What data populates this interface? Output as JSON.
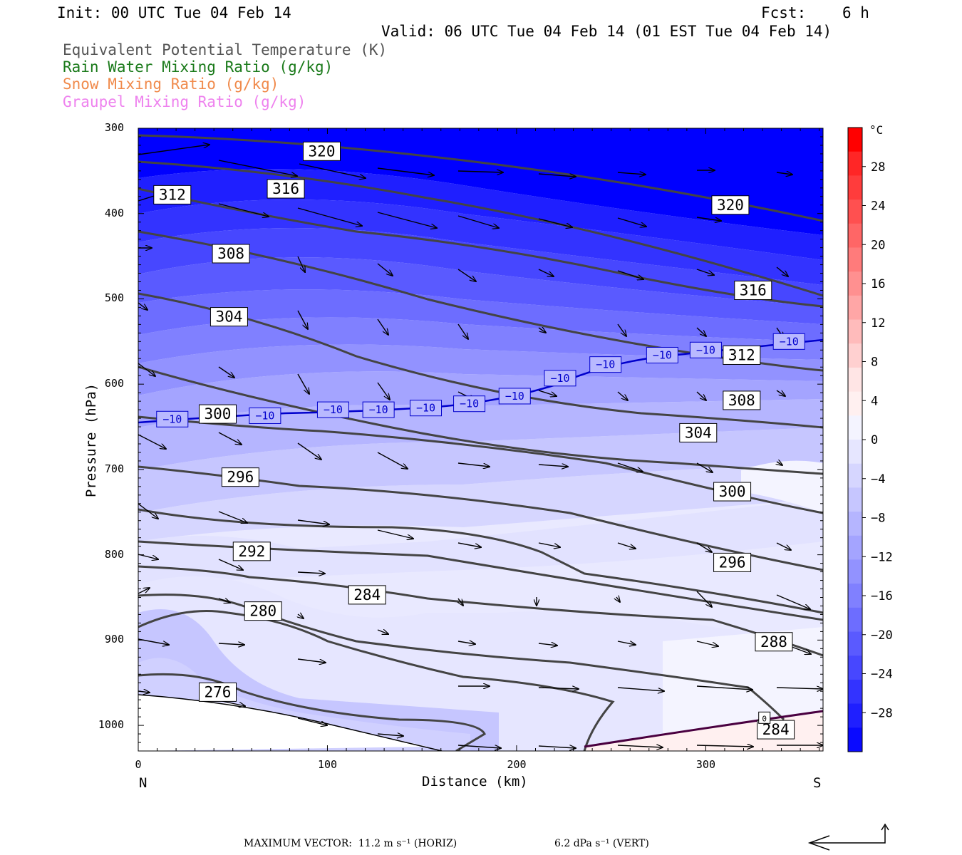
{
  "header": {
    "init": "Init: 00 UTC Tue 04 Feb 14",
    "fcst_label": "Fcst:",
    "fcst_value": "6 h",
    "valid": "Valid: 06 UTC Tue 04 Feb 14 (01 EST Tue 04 Feb 14)",
    "var1": "Equivalent Potential Temperature (K)",
    "var2": "Rain Water Mixing Ratio (g/kg)",
    "var3": "Snow Mixing Ratio (g/kg)",
    "var4": "Graupel Mixing Ratio (g/kg)",
    "var1_color": "#555555",
    "var2_color": "#1a7a1a",
    "var3_color": "#f08a4b",
    "var4_color": "#ee82ee"
  },
  "chart_data": {
    "type": "contour cross-section",
    "xlabel": "Distance (km)",
    "ylabel": "Pressure (hPa)",
    "x_ticks": [
      "0",
      "100",
      "200",
      "300"
    ],
    "x_tick_values": [
      0,
      100,
      200,
      300
    ],
    "x_end_labels": {
      "left": "N",
      "right": "S"
    },
    "xlim": [
      0,
      362
    ],
    "y_ticks": [
      "300",
      "400",
      "500",
      "600",
      "700",
      "800",
      "900",
      "1000"
    ],
    "y_tick_values": [
      300,
      400,
      500,
      600,
      700,
      800,
      900,
      1000
    ],
    "ylim": [
      300,
      1030
    ],
    "colorbar": {
      "unit": "°C",
      "labels": [
        "28",
        "24",
        "20",
        "16",
        "12",
        "8",
        "4",
        "0",
        "−4",
        "−8",
        "−12",
        "−16",
        "−20",
        "−24",
        "−28"
      ],
      "colors": [
        "#ff0000",
        "#ff2626",
        "#ff3c3c",
        "#ff5050",
        "#ff6666",
        "#ff7b7b",
        "#ff9090",
        "#ffa6a6",
        "#ffbbbb",
        "#ffd0d0",
        "#ffe5e5",
        "#fff0f0",
        "#f4f4ff",
        "#e6e6ff",
        "#d6d6ff",
        "#c6c6ff",
        "#b5b5ff",
        "#a4a4ff",
        "#9292ff",
        "#8080ff",
        "#6d6dff",
        "#5a5aff",
        "#4747ff",
        "#3333ff",
        "#1f1fff",
        "#0a0aff"
      ]
    },
    "theta_e_labels": [
      {
        "text": "320",
        "x": 97,
        "p": 327
      },
      {
        "text": "316",
        "x": 78,
        "p": 371
      },
      {
        "text": "312",
        "x": 18,
        "p": 378
      },
      {
        "text": "320",
        "x": 313,
        "p": 390
      },
      {
        "text": "308",
        "x": 49,
        "p": 447
      },
      {
        "text": "316",
        "x": 325,
        "p": 490
      },
      {
        "text": "304",
        "x": 48,
        "p": 521
      },
      {
        "text": "312",
        "x": 319,
        "p": 566
      },
      {
        "text": "308",
        "x": 319,
        "p": 619
      },
      {
        "text": "300",
        "x": 42,
        "p": 635
      },
      {
        "text": "304",
        "x": 296,
        "p": 657
      },
      {
        "text": "296",
        "x": 54,
        "p": 709
      },
      {
        "text": "300",
        "x": 314,
        "p": 726
      },
      {
        "text": "292",
        "x": 60,
        "p": 796
      },
      {
        "text": "296",
        "x": 314,
        "p": 809
      },
      {
        "text": "284",
        "x": 121,
        "p": 847
      },
      {
        "text": "280",
        "x": 66,
        "p": 866
      },
      {
        "text": "288",
        "x": 336,
        "p": 902
      },
      {
        "text": "276",
        "x": 42,
        "p": 961
      },
      {
        "text": "284",
        "x": 337,
        "p": 1005
      }
    ],
    "isotherm_labels": [
      {
        "text": "−10",
        "x": 18,
        "p": 641
      },
      {
        "text": "−10",
        "x": 67,
        "p": 637
      },
      {
        "text": "−10",
        "x": 103,
        "p": 630
      },
      {
        "text": "−10",
        "x": 127,
        "p": 630
      },
      {
        "text": "−10",
        "x": 152,
        "p": 628
      },
      {
        "text": "−10",
        "x": 175,
        "p": 623
      },
      {
        "text": "−10",
        "x": 199,
        "p": 614
      },
      {
        "text": "−10",
        "x": 223,
        "p": 593
      },
      {
        "text": "−10",
        "x": 247,
        "p": 577
      },
      {
        "text": "−10",
        "x": 277,
        "p": 566
      },
      {
        "text": "−10",
        "x": 300,
        "p": 560
      },
      {
        "text": "−10",
        "x": 344,
        "p": 550
      }
    ],
    "small_label": {
      "text": "0",
      "x": 331,
      "p": 991
    },
    "grid": false
  },
  "footer": {
    "max_vector": "MAXIMUM VECTOR:  11.2 m s⁻¹ (HORIZ)",
    "vert": "6.2 dPa s⁻¹ (VERT)"
  }
}
